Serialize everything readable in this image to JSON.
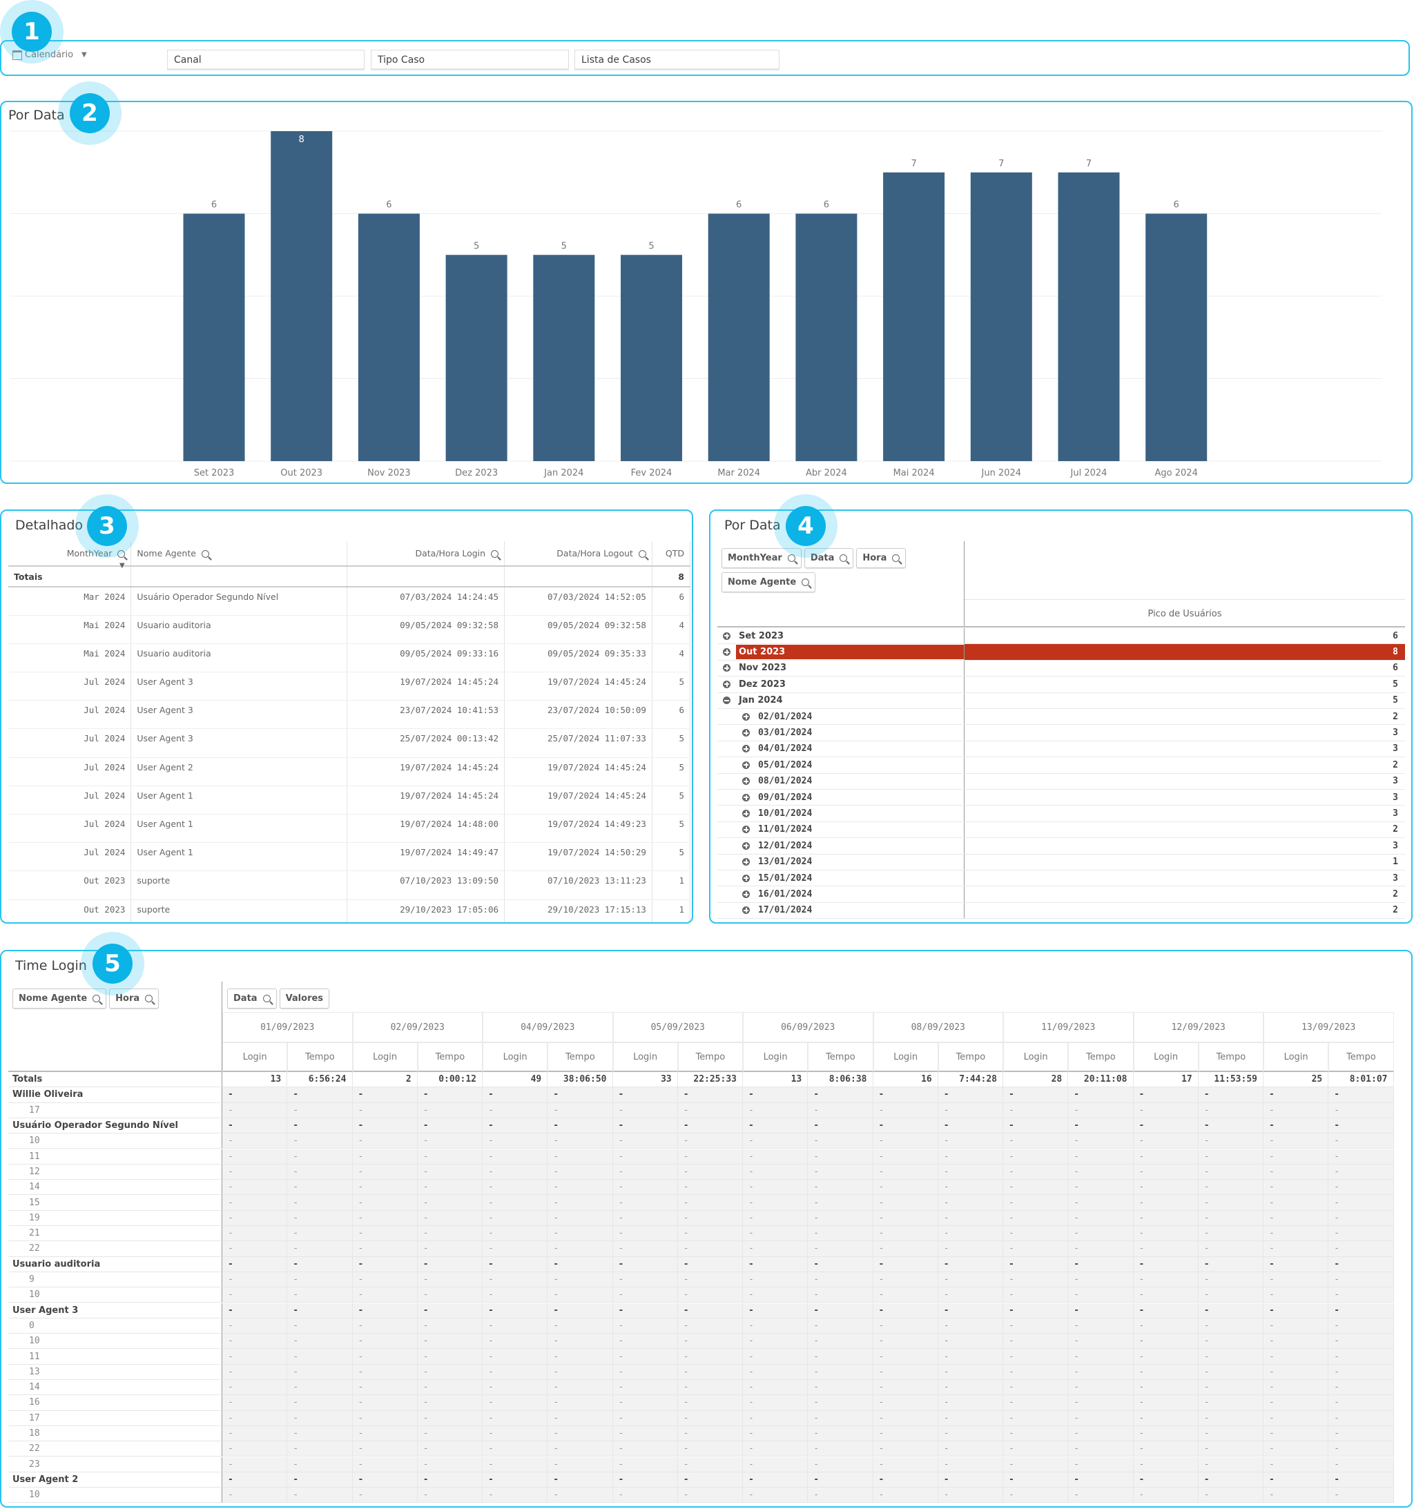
{
  "badges": [
    "1",
    "2",
    "3",
    "4",
    "5"
  ],
  "filters": {
    "calendar_label": "Calendário",
    "boxes": [
      "Canal",
      "Tipo Caso",
      "Lista de Casos"
    ]
  },
  "chart_panel": {
    "title": "Por Data"
  },
  "chart_data": {
    "type": "bar",
    "title": "Por Data",
    "categories": [
      "Set 2023",
      "Out 2023",
      "Nov 2023",
      "Dez 2023",
      "Jan 2024",
      "Fev 2024",
      "Mar 2024",
      "Abr 2024",
      "Mai 2024",
      "Jun 2024",
      "Jul 2024",
      "Ago 2024"
    ],
    "values": [
      6,
      8,
      6,
      5,
      5,
      5,
      6,
      6,
      7,
      7,
      7,
      6
    ],
    "ylim": [
      0,
      8
    ],
    "grid": true,
    "bar_color": "#3a6182",
    "xlabel": "",
    "ylabel": ""
  },
  "detalhado": {
    "title": "Detalhado",
    "headers": [
      "MonthYear",
      "Nome Agente",
      "Data/Hora Login",
      "Data/Hora Logout",
      "QTD"
    ],
    "totals_label": "Totais",
    "totals_qtd": "8",
    "rows": [
      [
        "Mar 2024",
        "Usuário Operador Segundo Nível",
        "07/03/2024 14:24:45",
        "07/03/2024 14:52:05",
        "6"
      ],
      [
        "Mai 2024",
        "Usuario auditoria",
        "09/05/2024 09:32:58",
        "09/05/2024 09:32:58",
        "4"
      ],
      [
        "Mai 2024",
        "Usuario auditoria",
        "09/05/2024 09:33:16",
        "09/05/2024 09:35:33",
        "4"
      ],
      [
        "Jul 2024",
        "User Agent 3",
        "19/07/2024 14:45:24",
        "19/07/2024 14:45:24",
        "5"
      ],
      [
        "Jul 2024",
        "User Agent 3",
        "23/07/2024 10:41:53",
        "23/07/2024 10:50:09",
        "6"
      ],
      [
        "Jul 2024",
        "User Agent 3",
        "25/07/2024 00:13:42",
        "25/07/2024 11:07:33",
        "5"
      ],
      [
        "Jul 2024",
        "User Agent 2",
        "19/07/2024 14:45:24",
        "19/07/2024 14:45:24",
        "5"
      ],
      [
        "Jul 2024",
        "User Agent 1",
        "19/07/2024 14:45:24",
        "19/07/2024 14:45:24",
        "5"
      ],
      [
        "Jul 2024",
        "User Agent 1",
        "19/07/2024 14:48:00",
        "19/07/2024 14:49:23",
        "5"
      ],
      [
        "Jul 2024",
        "User Agent 1",
        "19/07/2024 14:49:47",
        "19/07/2024 14:50:29",
        "5"
      ],
      [
        "Out 2023",
        "suporte",
        "07/10/2023 13:09:50",
        "07/10/2023 13:11:23",
        "1"
      ],
      [
        "Out 2023",
        "suporte",
        "29/10/2023 17:05:06",
        "29/10/2023 17:15:13",
        "1"
      ]
    ]
  },
  "pivot": {
    "title": "Por Data",
    "chips": [
      "MonthYear",
      "Data",
      "Hora",
      "Nome Agente"
    ],
    "measure": "Pico de Usuários",
    "highlight_color": "#c1341a",
    "rows": [
      {
        "label": "Set 2023",
        "value": "6",
        "level": 0,
        "expanded": false
      },
      {
        "label": "Out 2023",
        "value": "8",
        "level": 0,
        "expanded": false,
        "selected": true
      },
      {
        "label": "Nov 2023",
        "value": "6",
        "level": 0,
        "expanded": false
      },
      {
        "label": "Dez 2023",
        "value": "5",
        "level": 0,
        "expanded": false
      },
      {
        "label": "Jan 2024",
        "value": "5",
        "level": 0,
        "expanded": true
      },
      {
        "label": "02/01/2024",
        "value": "2",
        "level": 1
      },
      {
        "label": "03/01/2024",
        "value": "3",
        "level": 1
      },
      {
        "label": "04/01/2024",
        "value": "3",
        "level": 1
      },
      {
        "label": "05/01/2024",
        "value": "2",
        "level": 1
      },
      {
        "label": "08/01/2024",
        "value": "3",
        "level": 1
      },
      {
        "label": "09/01/2024",
        "value": "3",
        "level": 1
      },
      {
        "label": "10/01/2024",
        "value": "3",
        "level": 1
      },
      {
        "label": "11/01/2024",
        "value": "2",
        "level": 1
      },
      {
        "label": "12/01/2024",
        "value": "3",
        "level": 1
      },
      {
        "label": "13/01/2024",
        "value": "1",
        "level": 1
      },
      {
        "label": "15/01/2024",
        "value": "3",
        "level": 1
      },
      {
        "label": "16/01/2024",
        "value": "2",
        "level": 1
      },
      {
        "label": "17/01/2024",
        "value": "2",
        "level": 1
      }
    ]
  },
  "time_login": {
    "title": "Time Login",
    "row_chips": [
      "Nome Agente",
      "Hora"
    ],
    "col_chips": [
      "Data",
      "Valores"
    ],
    "sub_headers": [
      "Login",
      "Tempo"
    ],
    "totals_label": "Totals",
    "empty": "-",
    "dates": [
      "01/09/2023",
      "02/09/2023",
      "04/09/2023",
      "05/09/2023",
      "06/09/2023",
      "08/09/2023",
      "11/09/2023",
      "12/09/2023",
      "13/09/2023"
    ],
    "totals": [
      [
        "13",
        "6:56:24"
      ],
      [
        "2",
        "0:00:12"
      ],
      [
        "49",
        "38:06:50"
      ],
      [
        "33",
        "22:25:33"
      ],
      [
        "13",
        "8:06:38"
      ],
      [
        "16",
        "7:44:28"
      ],
      [
        "28",
        "20:11:08"
      ],
      [
        "17",
        "11:53:59"
      ],
      [
        "25",
        "8:01:07"
      ]
    ],
    "rows": [
      {
        "label": "Willie Oliveira",
        "group": true
      },
      {
        "label": "17"
      },
      {
        "label": "Usuário Operador Segundo Nível",
        "group": true
      },
      {
        "label": "10"
      },
      {
        "label": "11"
      },
      {
        "label": "12"
      },
      {
        "label": "14"
      },
      {
        "label": "15"
      },
      {
        "label": "19"
      },
      {
        "label": "21"
      },
      {
        "label": "22"
      },
      {
        "label": "Usuario auditoria",
        "group": true
      },
      {
        "label": "9"
      },
      {
        "label": "10"
      },
      {
        "label": "User Agent 3",
        "group": true
      },
      {
        "label": "0"
      },
      {
        "label": "10"
      },
      {
        "label": "11"
      },
      {
        "label": "13"
      },
      {
        "label": "14"
      },
      {
        "label": "16"
      },
      {
        "label": "17"
      },
      {
        "label": "18"
      },
      {
        "label": "22"
      },
      {
        "label": "23"
      },
      {
        "label": "User Agent 2",
        "group": true
      },
      {
        "label": "10"
      }
    ]
  }
}
